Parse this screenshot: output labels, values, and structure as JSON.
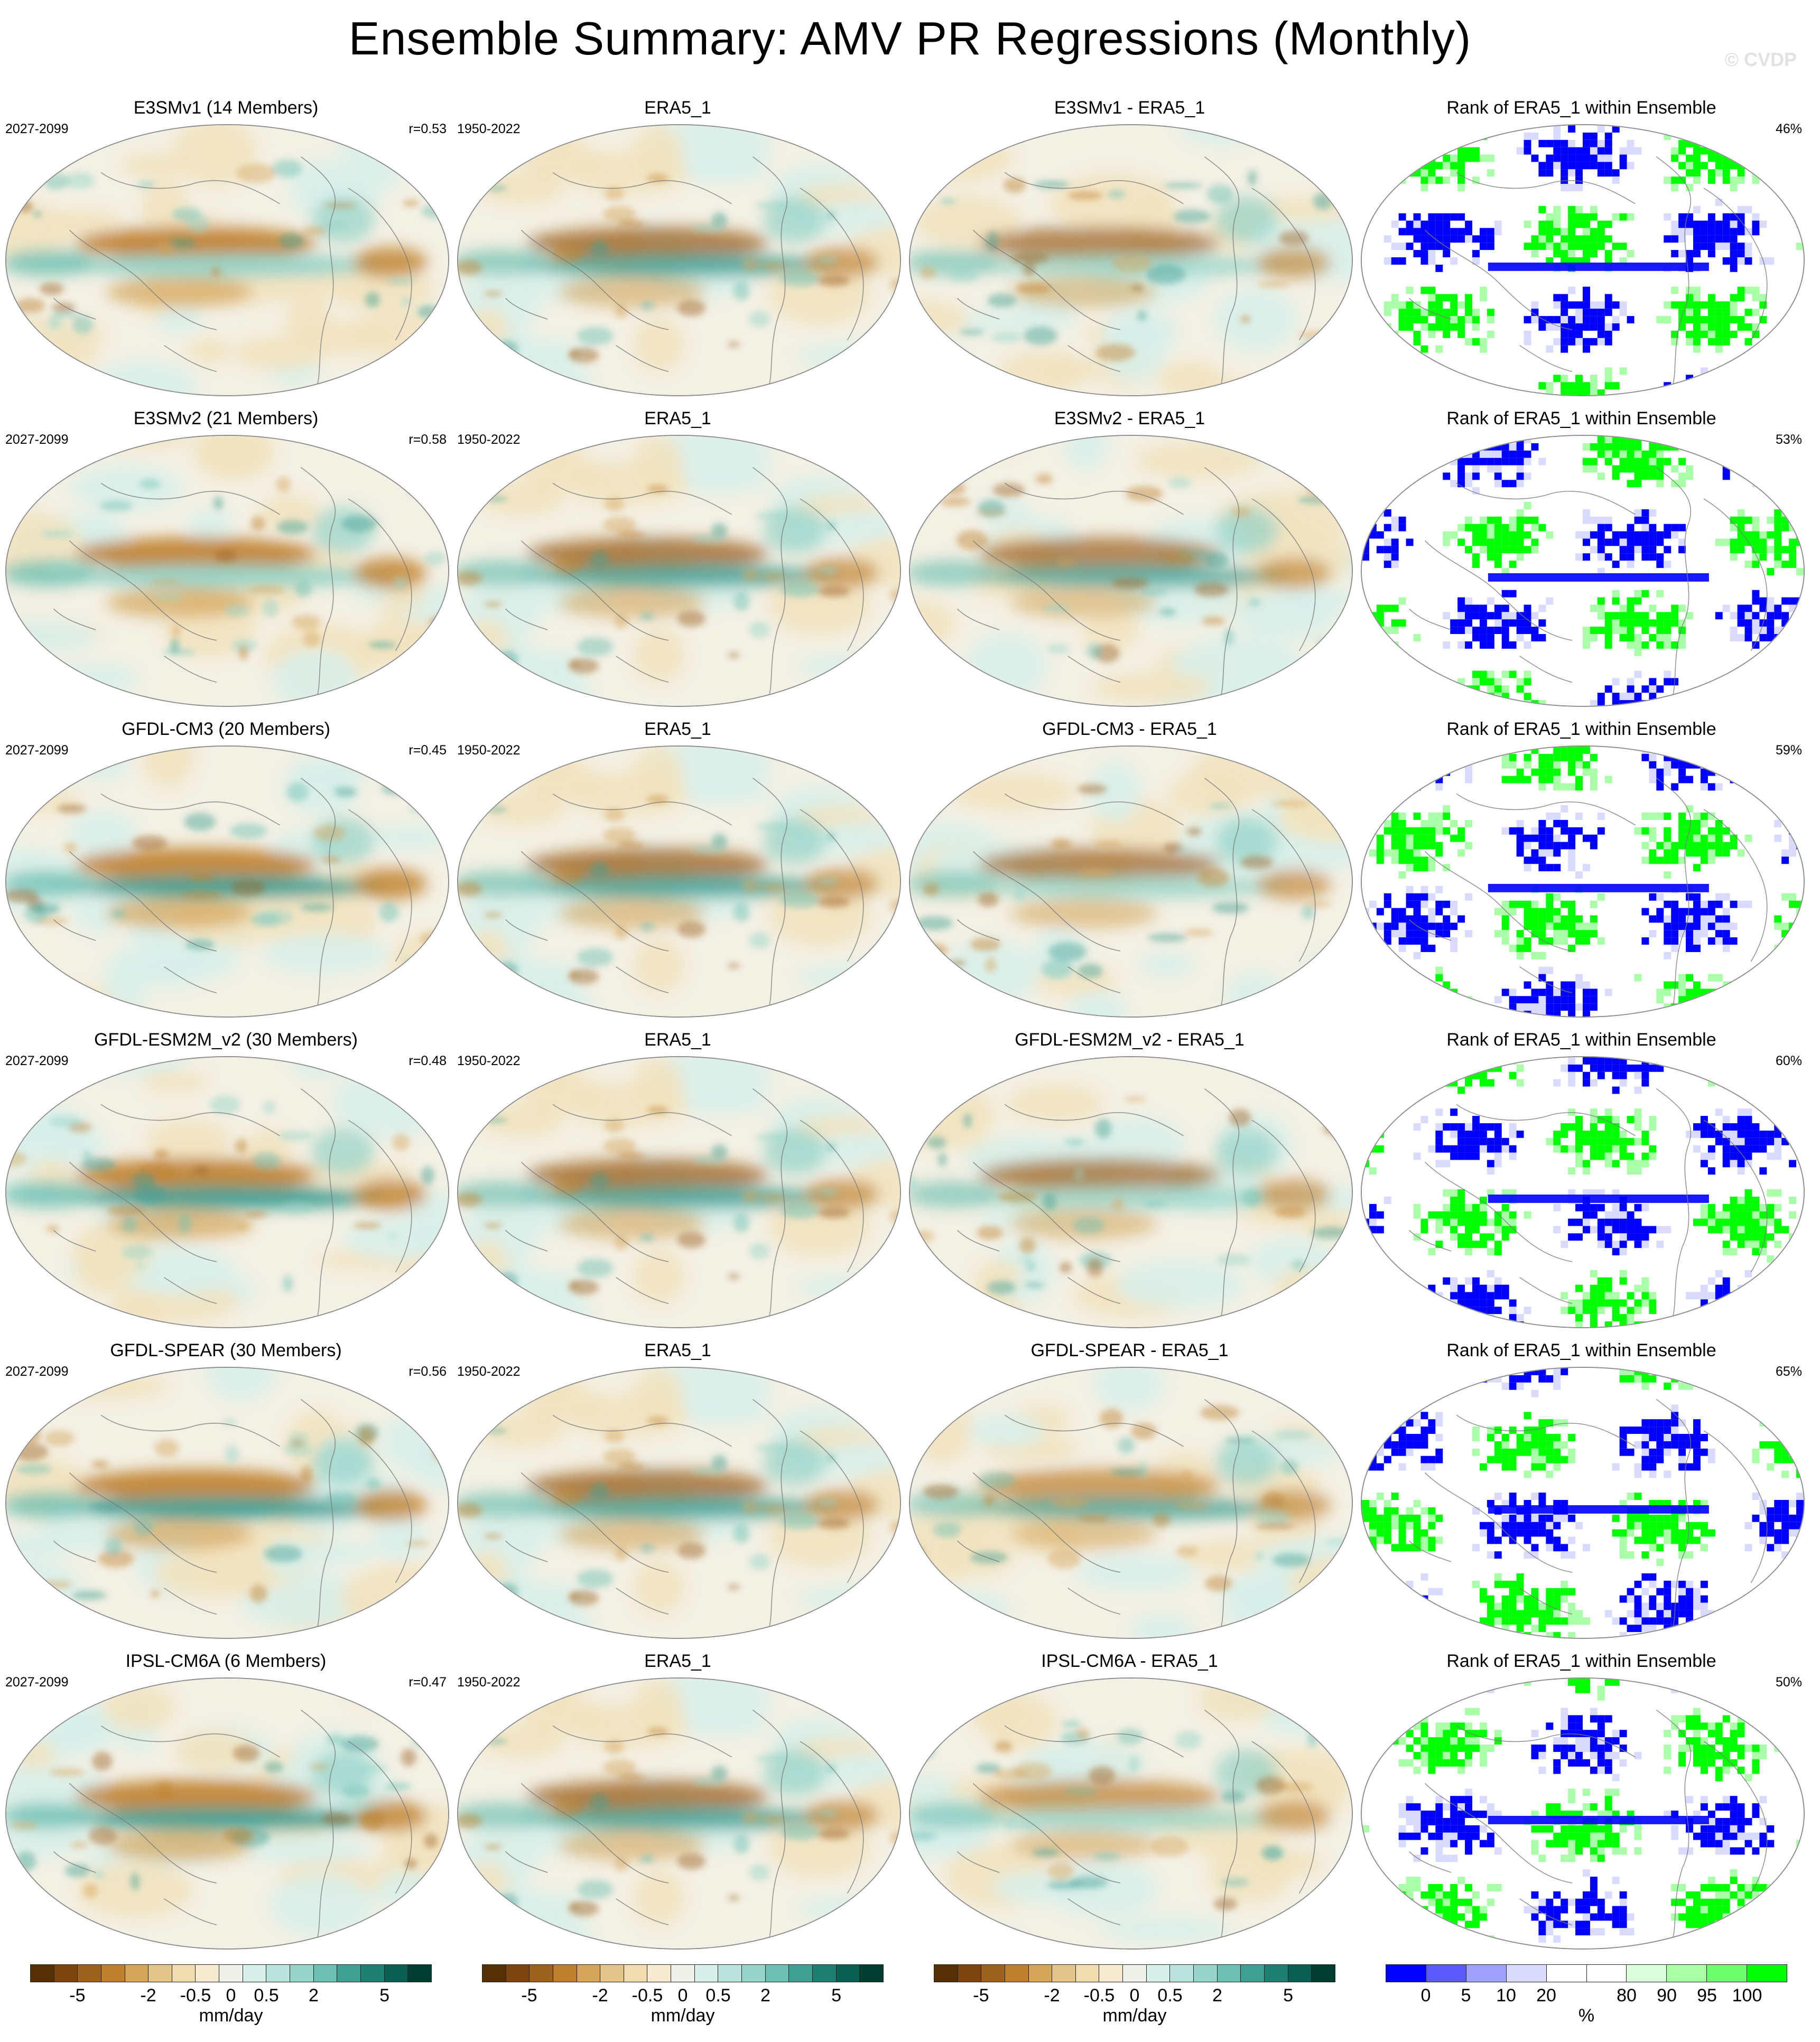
{
  "title": "Ensemble Summary: AMV PR Regressions (Monthly)",
  "watermark": "© CVDP",
  "rows": [
    {
      "model": "E3SMv1 (14 Members)",
      "model_years": "2027-2099",
      "r": "r=0.53",
      "obs": "ERA5_1",
      "obs_years": "1950-2022",
      "diff": "E3SMv1 - ERA5_1",
      "rank": "Rank of ERA5_1 within Ensemble",
      "rank_pct": "46%"
    },
    {
      "model": "E3SMv2 (21 Members)",
      "model_years": "2027-2099",
      "r": "r=0.58",
      "obs": "ERA5_1",
      "obs_years": "1950-2022",
      "diff": "E3SMv2 - ERA5_1",
      "rank": "Rank of ERA5_1 within Ensemble",
      "rank_pct": "53%"
    },
    {
      "model": "GFDL-CM3 (20 Members)",
      "model_years": "2027-2099",
      "r": "r=0.45",
      "obs": "ERA5_1",
      "obs_years": "1950-2022",
      "diff": "GFDL-CM3 - ERA5_1",
      "rank": "Rank of ERA5_1 within Ensemble",
      "rank_pct": "59%"
    },
    {
      "model": "GFDL-ESM2M_v2 (30 Members)",
      "model_years": "2027-2099",
      "r": "r=0.48",
      "obs": "ERA5_1",
      "obs_years": "1950-2022",
      "diff": "GFDL-ESM2M_v2 - ERA5_1",
      "rank": "Rank of ERA5_1 within Ensemble",
      "rank_pct": "60%"
    },
    {
      "model": "GFDL-SPEAR (30 Members)",
      "model_years": "2027-2099",
      "r": "r=0.56",
      "obs": "ERA5_1",
      "obs_years": "1950-2022",
      "diff": "GFDL-SPEAR - ERA5_1",
      "rank": "Rank of ERA5_1 within Ensemble",
      "rank_pct": "65%"
    },
    {
      "model": "IPSL-CM6A (6 Members)",
      "model_years": "2027-2099",
      "r": "r=0.47",
      "obs": "ERA5_1",
      "obs_years": "1950-2022",
      "diff": "IPSL-CM6A - ERA5_1",
      "rank": "Rank of ERA5_1 within Ensemble",
      "rank_pct": "50%"
    }
  ],
  "colorbars": {
    "pr": {
      "unit": "mm/day",
      "colors": [
        "#543005",
        "#7a4510",
        "#9c6220",
        "#bf812d",
        "#d4a55a",
        "#e2c58a",
        "#efdcb0",
        "#f6ebcf",
        "#f0f0ea",
        "#d9efea",
        "#bde4dc",
        "#96d3c8",
        "#6cbfb1",
        "#3f9f92",
        "#1f7f72",
        "#0b5e52",
        "#003c30"
      ],
      "ticks": [
        "-5",
        "-2",
        "-0.5",
        "0",
        "0.5",
        "2",
        "5"
      ]
    },
    "rank": {
      "unit": "%",
      "colors": [
        "#0000ff",
        "#5a5aff",
        "#a0a0ff",
        "#dadaff",
        "#ffffff",
        "#ffffff",
        "#dcffdc",
        "#a8ffa8",
        "#6cff6c",
        "#00ff00"
      ],
      "ticks": [
        "0",
        "5",
        "10",
        "20",
        "80",
        "90",
        "95",
        "100"
      ]
    }
  }
}
